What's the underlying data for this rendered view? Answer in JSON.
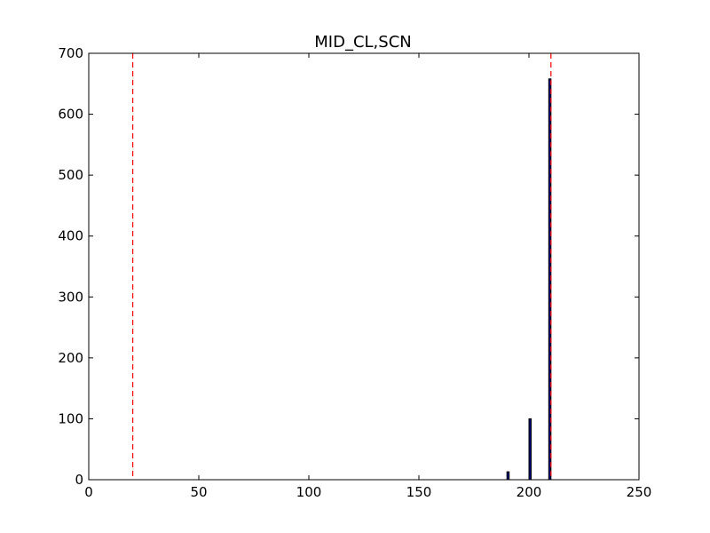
{
  "chart_data": {
    "type": "bar",
    "title": "MID_CL,SCN",
    "xlabel": "",
    "ylabel": "",
    "xlim": [
      0,
      250
    ],
    "ylim": [
      0,
      700
    ],
    "xticks": [
      0,
      50,
      100,
      150,
      200,
      250
    ],
    "yticks": [
      0,
      100,
      200,
      300,
      400,
      500,
      600,
      700
    ],
    "xtick_labels": [
      "0",
      "50",
      "100",
      "150",
      "200",
      "250"
    ],
    "ytick_labels": [
      "0",
      "100",
      "200",
      "300",
      "400",
      "500",
      "600",
      "700"
    ],
    "bars": [
      {
        "x": 190,
        "width": 1,
        "value": 13
      },
      {
        "x": 200,
        "width": 1,
        "value": 100
      },
      {
        "x": 209,
        "width": 1,
        "value": 658
      }
    ],
    "reference_lines": [
      {
        "x": 20,
        "style": "dashed",
        "color": "#ff0000"
      },
      {
        "x": 210,
        "style": "dashed",
        "color": "#ff0000"
      }
    ],
    "grid": false,
    "legend": "none",
    "colors": {
      "bar_fill": "#000080",
      "bar_edge": "#000000",
      "ref_line": "#ff0000"
    }
  }
}
